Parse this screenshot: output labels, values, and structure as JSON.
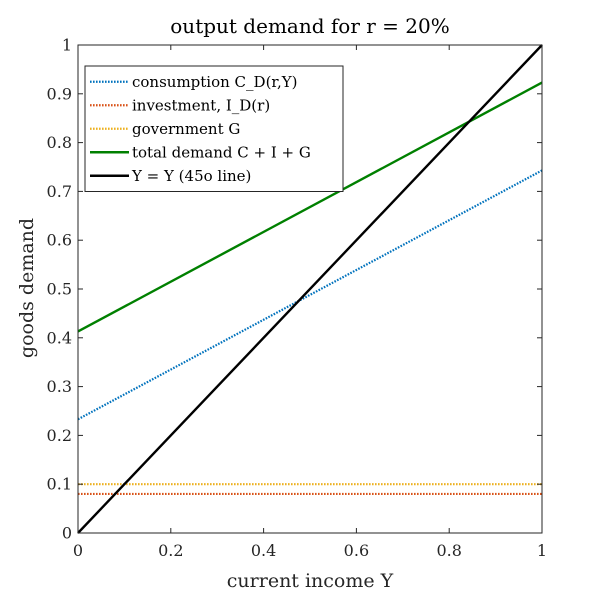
{
  "chart_data": {
    "type": "line",
    "title": "output demand for r = 20%",
    "xlabel": "current income Y",
    "ylabel": "goods demand",
    "xlim": [
      0,
      1
    ],
    "ylim": [
      0,
      1
    ],
    "xticks": [
      0,
      0.2,
      0.4,
      0.6,
      0.8,
      1
    ],
    "xtick_labels": [
      "0",
      "0.2",
      "0.4",
      "0.6",
      "0.8",
      "1"
    ],
    "yticks": [
      0,
      0.1,
      0.2,
      0.3,
      0.4,
      0.5,
      0.6,
      0.7,
      0.8,
      0.9,
      1
    ],
    "ytick_labels": [
      "0",
      "0.1",
      "0.2",
      "0.3",
      "0.4",
      "0.5",
      "0.6",
      "0.7",
      "0.8",
      "0.9",
      "1"
    ],
    "grid": false,
    "legend_position": "top-left",
    "series": [
      {
        "name": "consumption C_D(r,Y)",
        "x": [
          0,
          1
        ],
        "y": [
          0.233,
          0.743
        ],
        "color": "#0072BD",
        "style": "dotted"
      },
      {
        "name": "investment, I_D(r)",
        "x": [
          0,
          1
        ],
        "y": [
          0.08,
          0.08
        ],
        "color": "#D95319",
        "style": "dotted"
      },
      {
        "name": "government G",
        "x": [
          0,
          1
        ],
        "y": [
          0.1,
          0.1
        ],
        "color": "#EDB120",
        "style": "dotted"
      },
      {
        "name": "total demand C + I + G",
        "x": [
          0,
          1
        ],
        "y": [
          0.413,
          0.923
        ],
        "color": "#008000",
        "style": "solid"
      },
      {
        "name": "Y = Y (45o line)",
        "x": [
          0,
          1
        ],
        "y": [
          0,
          1
        ],
        "color": "#000000",
        "style": "solid"
      }
    ]
  }
}
